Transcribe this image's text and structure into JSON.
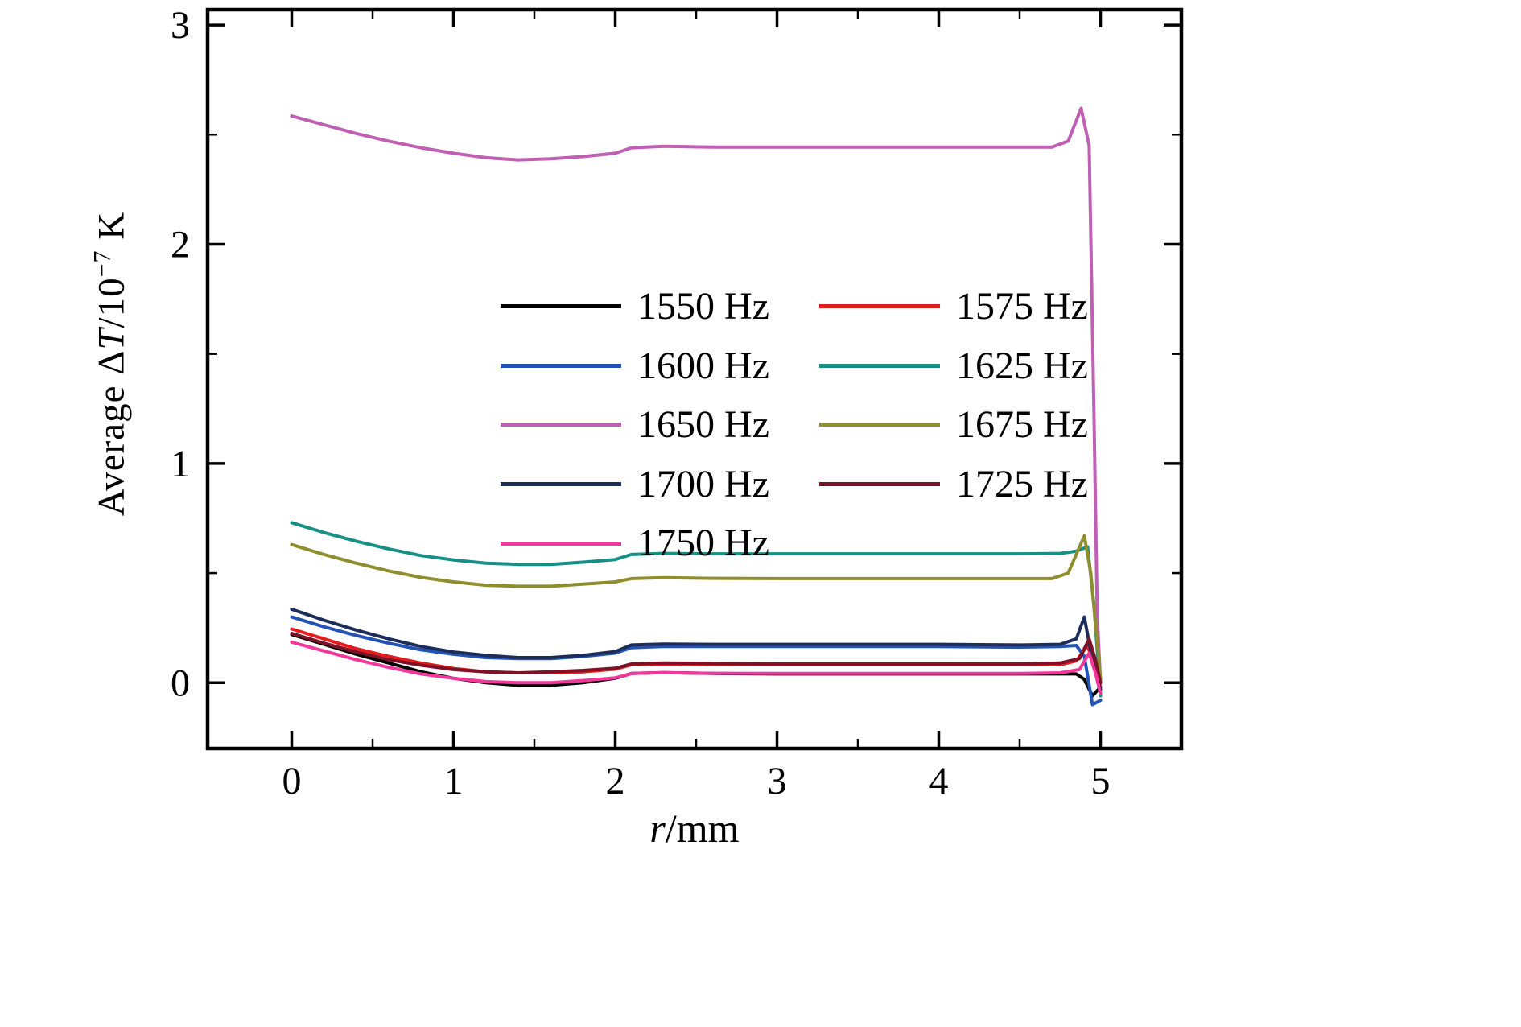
{
  "figure": {
    "background": "#ffffff",
    "frame_color": "#000000"
  },
  "chart_data": {
    "type": "line",
    "title": "",
    "xlabel": "r/mm",
    "ylabel": "Average ΔT/10⁻⁷ K",
    "xlabel_parts": {
      "var": "r",
      "rest": "/mm"
    },
    "ylabel_parts": {
      "prefix": "Average Δ",
      "var": "T",
      "mid": "/10",
      "sup": "−7",
      "suffix": " K"
    },
    "xlim": [
      -0.52,
      5.5
    ],
    "ylim": [
      -0.3,
      3.07
    ],
    "xticks": [
      "0",
      "1",
      "2",
      "3",
      "4",
      "5"
    ],
    "xtick_values": [
      0,
      1,
      2,
      3,
      4,
      5
    ],
    "yticks": [
      "0",
      "1",
      "2",
      "3"
    ],
    "ytick_values": [
      0,
      1,
      2,
      3
    ],
    "x_minor_step": 0.5,
    "y_minor_step": 0.5,
    "grid": false,
    "legend_position": "upper-center, two columns, inside axes",
    "series": [
      {
        "name": "1550 Hz",
        "color": "#000000",
        "points": [
          [
            0,
            0.22
          ],
          [
            0.2,
            0.175
          ],
          [
            0.4,
            0.13
          ],
          [
            0.6,
            0.09
          ],
          [
            0.8,
            0.05
          ],
          [
            1.0,
            0.02
          ],
          [
            1.2,
            0.0
          ],
          [
            1.4,
            -0.012
          ],
          [
            1.6,
            -0.012
          ],
          [
            1.8,
            0.0
          ],
          [
            2.0,
            0.02
          ],
          [
            2.1,
            0.042
          ],
          [
            2.3,
            0.046
          ],
          [
            2.6,
            0.042
          ],
          [
            3.0,
            0.04
          ],
          [
            3.5,
            0.04
          ],
          [
            4.0,
            0.04
          ],
          [
            4.5,
            0.04
          ],
          [
            4.7,
            0.04
          ],
          [
            4.85,
            0.04
          ],
          [
            4.9,
            0.015
          ],
          [
            4.95,
            -0.06
          ],
          [
            5.0,
            -0.02
          ]
        ]
      },
      {
        "name": "1575 Hz",
        "color": "#e41a1c",
        "points": [
          [
            0,
            0.245
          ],
          [
            0.2,
            0.2
          ],
          [
            0.4,
            0.155
          ],
          [
            0.6,
            0.12
          ],
          [
            0.8,
            0.09
          ],
          [
            1.0,
            0.065
          ],
          [
            1.2,
            0.05
          ],
          [
            1.4,
            0.045
          ],
          [
            1.6,
            0.045
          ],
          [
            1.8,
            0.05
          ],
          [
            2.0,
            0.062
          ],
          [
            2.1,
            0.082
          ],
          [
            2.3,
            0.086
          ],
          [
            2.6,
            0.083
          ],
          [
            3.0,
            0.082
          ],
          [
            3.5,
            0.082
          ],
          [
            4.0,
            0.082
          ],
          [
            4.5,
            0.082
          ],
          [
            4.75,
            0.082
          ],
          [
            4.85,
            0.1
          ],
          [
            4.92,
            0.17
          ],
          [
            4.96,
            0.08
          ],
          [
            5.0,
            -0.02
          ]
        ]
      },
      {
        "name": "1600 Hz",
        "color": "#2353b4",
        "points": [
          [
            0,
            0.3
          ],
          [
            0.2,
            0.255
          ],
          [
            0.4,
            0.215
          ],
          [
            0.6,
            0.18
          ],
          [
            0.8,
            0.15
          ],
          [
            1.0,
            0.13
          ],
          [
            1.2,
            0.115
          ],
          [
            1.4,
            0.11
          ],
          [
            1.6,
            0.11
          ],
          [
            1.8,
            0.12
          ],
          [
            2.0,
            0.135
          ],
          [
            2.1,
            0.16
          ],
          [
            2.3,
            0.166
          ],
          [
            2.6,
            0.165
          ],
          [
            3.0,
            0.165
          ],
          [
            3.5,
            0.165
          ],
          [
            4.0,
            0.165
          ],
          [
            4.5,
            0.162
          ],
          [
            4.75,
            0.165
          ],
          [
            4.85,
            0.17
          ],
          [
            4.9,
            0.12
          ],
          [
            4.95,
            -0.1
          ],
          [
            5.0,
            -0.08
          ]
        ]
      },
      {
        "name": "1625 Hz",
        "color": "#178f85",
        "points": [
          [
            0,
            0.73
          ],
          [
            0.2,
            0.685
          ],
          [
            0.4,
            0.645
          ],
          [
            0.6,
            0.61
          ],
          [
            0.8,
            0.58
          ],
          [
            1.0,
            0.56
          ],
          [
            1.2,
            0.545
          ],
          [
            1.4,
            0.54
          ],
          [
            1.6,
            0.54
          ],
          [
            1.8,
            0.55
          ],
          [
            2.0,
            0.562
          ],
          [
            2.1,
            0.585
          ],
          [
            2.3,
            0.59
          ],
          [
            2.6,
            0.588
          ],
          [
            3.0,
            0.588
          ],
          [
            3.5,
            0.588
          ],
          [
            4.0,
            0.588
          ],
          [
            4.5,
            0.588
          ],
          [
            4.75,
            0.59
          ],
          [
            4.85,
            0.6
          ],
          [
            4.92,
            0.62
          ],
          [
            4.96,
            0.35
          ],
          [
            5.0,
            -0.06
          ]
        ]
      },
      {
        "name": "1650 Hz",
        "color": "#bf60b4",
        "points": [
          [
            0,
            2.585
          ],
          [
            0.2,
            2.545
          ],
          [
            0.4,
            2.505
          ],
          [
            0.6,
            2.47
          ],
          [
            0.8,
            2.44
          ],
          [
            1.0,
            2.415
          ],
          [
            1.2,
            2.395
          ],
          [
            1.4,
            2.385
          ],
          [
            1.6,
            2.39
          ],
          [
            1.8,
            2.4
          ],
          [
            2.0,
            2.415
          ],
          [
            2.1,
            2.44
          ],
          [
            2.3,
            2.447
          ],
          [
            2.6,
            2.443
          ],
          [
            3.0,
            2.443
          ],
          [
            3.5,
            2.443
          ],
          [
            4.0,
            2.443
          ],
          [
            4.5,
            2.443
          ],
          [
            4.7,
            2.443
          ],
          [
            4.8,
            2.47
          ],
          [
            4.88,
            2.62
          ],
          [
            4.93,
            2.45
          ],
          [
            4.96,
            1.2
          ],
          [
            4.98,
            0.3
          ],
          [
            5.0,
            0.0
          ]
        ]
      },
      {
        "name": "1675 Hz",
        "color": "#8e8e2e",
        "points": [
          [
            0,
            0.63
          ],
          [
            0.2,
            0.585
          ],
          [
            0.4,
            0.545
          ],
          [
            0.6,
            0.51
          ],
          [
            0.8,
            0.48
          ],
          [
            1.0,
            0.46
          ],
          [
            1.2,
            0.445
          ],
          [
            1.4,
            0.44
          ],
          [
            1.6,
            0.44
          ],
          [
            1.8,
            0.45
          ],
          [
            2.0,
            0.46
          ],
          [
            2.1,
            0.475
          ],
          [
            2.3,
            0.479
          ],
          [
            2.6,
            0.476
          ],
          [
            3.0,
            0.475
          ],
          [
            3.5,
            0.475
          ],
          [
            4.0,
            0.475
          ],
          [
            4.5,
            0.475
          ],
          [
            4.7,
            0.475
          ],
          [
            4.8,
            0.5
          ],
          [
            4.9,
            0.67
          ],
          [
            4.94,
            0.5
          ],
          [
            5.0,
            0.02
          ]
        ]
      },
      {
        "name": "1700 Hz",
        "color": "#1d2d5b",
        "points": [
          [
            0,
            0.335
          ],
          [
            0.2,
            0.285
          ],
          [
            0.4,
            0.24
          ],
          [
            0.6,
            0.2
          ],
          [
            0.8,
            0.165
          ],
          [
            1.0,
            0.14
          ],
          [
            1.2,
            0.125
          ],
          [
            1.4,
            0.115
          ],
          [
            1.6,
            0.115
          ],
          [
            1.8,
            0.125
          ],
          [
            2.0,
            0.142
          ],
          [
            2.1,
            0.172
          ],
          [
            2.3,
            0.176
          ],
          [
            2.6,
            0.175
          ],
          [
            3.0,
            0.175
          ],
          [
            3.5,
            0.175
          ],
          [
            4.0,
            0.175
          ],
          [
            4.5,
            0.172
          ],
          [
            4.75,
            0.175
          ],
          [
            4.85,
            0.2
          ],
          [
            4.9,
            0.3
          ],
          [
            4.95,
            0.1
          ],
          [
            5.0,
            -0.03
          ]
        ]
      },
      {
        "name": "1725 Hz",
        "color": "#7c1128",
        "points": [
          [
            0,
            0.225
          ],
          [
            0.2,
            0.18
          ],
          [
            0.4,
            0.14
          ],
          [
            0.6,
            0.105
          ],
          [
            0.8,
            0.08
          ],
          [
            1.0,
            0.06
          ],
          [
            1.2,
            0.05
          ],
          [
            1.4,
            0.045
          ],
          [
            1.6,
            0.05
          ],
          [
            1.8,
            0.056
          ],
          [
            2.0,
            0.066
          ],
          [
            2.1,
            0.086
          ],
          [
            2.3,
            0.09
          ],
          [
            2.6,
            0.088
          ],
          [
            3.0,
            0.086
          ],
          [
            3.5,
            0.086
          ],
          [
            4.0,
            0.086
          ],
          [
            4.5,
            0.086
          ],
          [
            4.75,
            0.09
          ],
          [
            4.87,
            0.11
          ],
          [
            4.93,
            0.2
          ],
          [
            4.97,
            0.1
          ],
          [
            5.0,
            0.0
          ]
        ]
      },
      {
        "name": "1750 Hz",
        "color": "#f3379b",
        "points": [
          [
            0,
            0.185
          ],
          [
            0.2,
            0.145
          ],
          [
            0.4,
            0.105
          ],
          [
            0.6,
            0.07
          ],
          [
            0.8,
            0.04
          ],
          [
            1.0,
            0.02
          ],
          [
            1.2,
            0.005
          ],
          [
            1.4,
            0.0
          ],
          [
            1.6,
            0.0
          ],
          [
            1.8,
            0.01
          ],
          [
            2.0,
            0.022
          ],
          [
            2.1,
            0.042
          ],
          [
            2.3,
            0.046
          ],
          [
            2.6,
            0.043
          ],
          [
            3.0,
            0.042
          ],
          [
            3.5,
            0.042
          ],
          [
            4.0,
            0.042
          ],
          [
            4.5,
            0.042
          ],
          [
            4.75,
            0.045
          ],
          [
            4.87,
            0.06
          ],
          [
            4.93,
            0.135
          ],
          [
            4.97,
            0.04
          ],
          [
            5.0,
            -0.05
          ]
        ]
      }
    ]
  }
}
